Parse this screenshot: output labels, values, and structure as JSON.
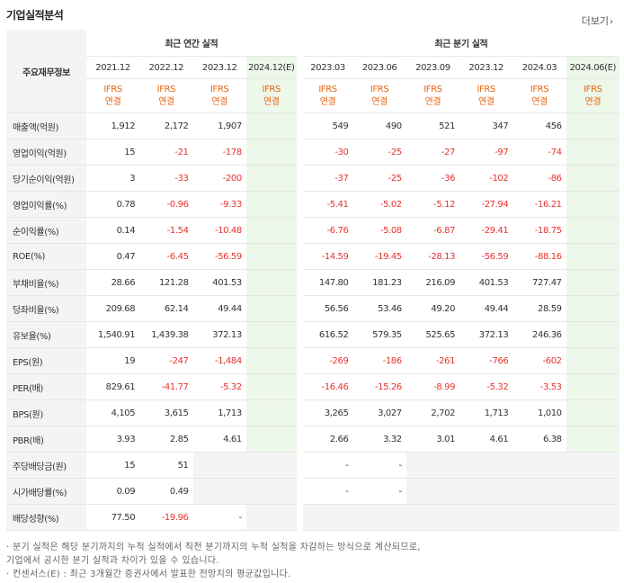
{
  "title": "기업실적분석",
  "more_label": "더보기",
  "header": {
    "row_label": "주요재무정보",
    "annual_group": "최근 연간 실적",
    "quarter_group": "최근 분기 실적",
    "annual_dates": [
      "2021.12",
      "2022.12",
      "2023.12",
      "2024.12(E)"
    ],
    "quarter_dates": [
      "2023.03",
      "2023.06",
      "2023.09",
      "2023.12",
      "2024.03",
      "2024.06(E)"
    ],
    "ifrs_top": "IFRS",
    "ifrs_bottom": "연결"
  },
  "rows": [
    {
      "label": "매출액(억원)",
      "annual": [
        "1,912",
        "2,172",
        "1,907",
        ""
      ],
      "quarter": [
        "549",
        "490",
        "521",
        "347",
        "456",
        ""
      ]
    },
    {
      "label": "영업이익(억원)",
      "annual": [
        "15",
        "-21",
        "-178",
        ""
      ],
      "quarter": [
        "-30",
        "-25",
        "-27",
        "-97",
        "-74",
        ""
      ]
    },
    {
      "label": "당기순이익(억원)",
      "annual": [
        "3",
        "-33",
        "-200",
        ""
      ],
      "quarter": [
        "-37",
        "-25",
        "-36",
        "-102",
        "-86",
        ""
      ]
    },
    {
      "label": "영업이익률(%)",
      "annual": [
        "0.78",
        "-0.96",
        "-9.33",
        ""
      ],
      "quarter": [
        "-5.41",
        "-5.02",
        "-5.12",
        "-27.94",
        "-16.21",
        ""
      ]
    },
    {
      "label": "순이익률(%)",
      "annual": [
        "0.14",
        "-1.54",
        "-10.48",
        ""
      ],
      "quarter": [
        "-6.76",
        "-5.08",
        "-6.87",
        "-29.41",
        "-18.75",
        ""
      ]
    },
    {
      "label": "ROE(%)",
      "annual": [
        "0.47",
        "-6.45",
        "-56.59",
        ""
      ],
      "quarter": [
        "-14.59",
        "-19.45",
        "-28.13",
        "-56.59",
        "-88.16",
        ""
      ]
    },
    {
      "label": "부채비율(%)",
      "annual": [
        "28.66",
        "121.28",
        "401.53",
        ""
      ],
      "quarter": [
        "147.80",
        "181.23",
        "216.09",
        "401.53",
        "727.47",
        ""
      ]
    },
    {
      "label": "당좌비율(%)",
      "annual": [
        "209.68",
        "62.14",
        "49.44",
        ""
      ],
      "quarter": [
        "56.56",
        "53.46",
        "49.20",
        "49.44",
        "28.59",
        ""
      ]
    },
    {
      "label": "유보율(%)",
      "annual": [
        "1,540.91",
        "1,439.38",
        "372.13",
        ""
      ],
      "quarter": [
        "616.52",
        "579.35",
        "525.65",
        "372.13",
        "246.36",
        ""
      ]
    },
    {
      "label": "EPS(원)",
      "annual": [
        "19",
        "-247",
        "-1,484",
        ""
      ],
      "quarter": [
        "-269",
        "-186",
        "-261",
        "-766",
        "-602",
        ""
      ]
    },
    {
      "label": "PER(배)",
      "annual": [
        "829.61",
        "-41.77",
        "-5.32",
        ""
      ],
      "quarter": [
        "-16.46",
        "-15.26",
        "-8.99",
        "-5.32",
        "-3.53",
        ""
      ]
    },
    {
      "label": "BPS(원)",
      "annual": [
        "4,105",
        "3,615",
        "1,713",
        ""
      ],
      "quarter": [
        "3,265",
        "3,027",
        "2,702",
        "1,713",
        "1,010",
        ""
      ]
    },
    {
      "label": "PBR(배)",
      "annual": [
        "3.93",
        "2.85",
        "4.61",
        ""
      ],
      "quarter": [
        "2.66",
        "3.32",
        "3.01",
        "4.61",
        "6.38",
        ""
      ]
    },
    {
      "label": "주당배당금(원)",
      "annual": [
        "15",
        "51",
        null,
        null
      ],
      "quarter": [
        "-",
        "-",
        null,
        null,
        null,
        null
      ]
    },
    {
      "label": "시가배당률(%)",
      "annual": [
        "0.09",
        "0.49",
        null,
        null
      ],
      "quarter": [
        "-",
        "-",
        null,
        null,
        null,
        null
      ]
    },
    {
      "label": "배당성향(%)",
      "annual": [
        "77.50",
        "-19.96",
        "-",
        null
      ],
      "quarter": [
        null,
        null,
        null,
        null,
        null,
        null
      ]
    }
  ],
  "notes": [
    "· 분기 실적은 해당 분기까지의 누적 실적에서 직전 분기까지의 누적 실적을 차감하는 방식으로 계산되므로,",
    "  기업에서 공시한 분기 실적과 차이가 있을 수 있습니다.",
    "· 컨센서스(E) : 최근 3개월간 증권사에서 발표한 전망치의 평균값입니다."
  ],
  "colors": {
    "negative": "#e8322d",
    "ifrs": "#e8650d",
    "estimate_bg": "#edf7ea",
    "label_bg": "#f4f4f4"
  }
}
